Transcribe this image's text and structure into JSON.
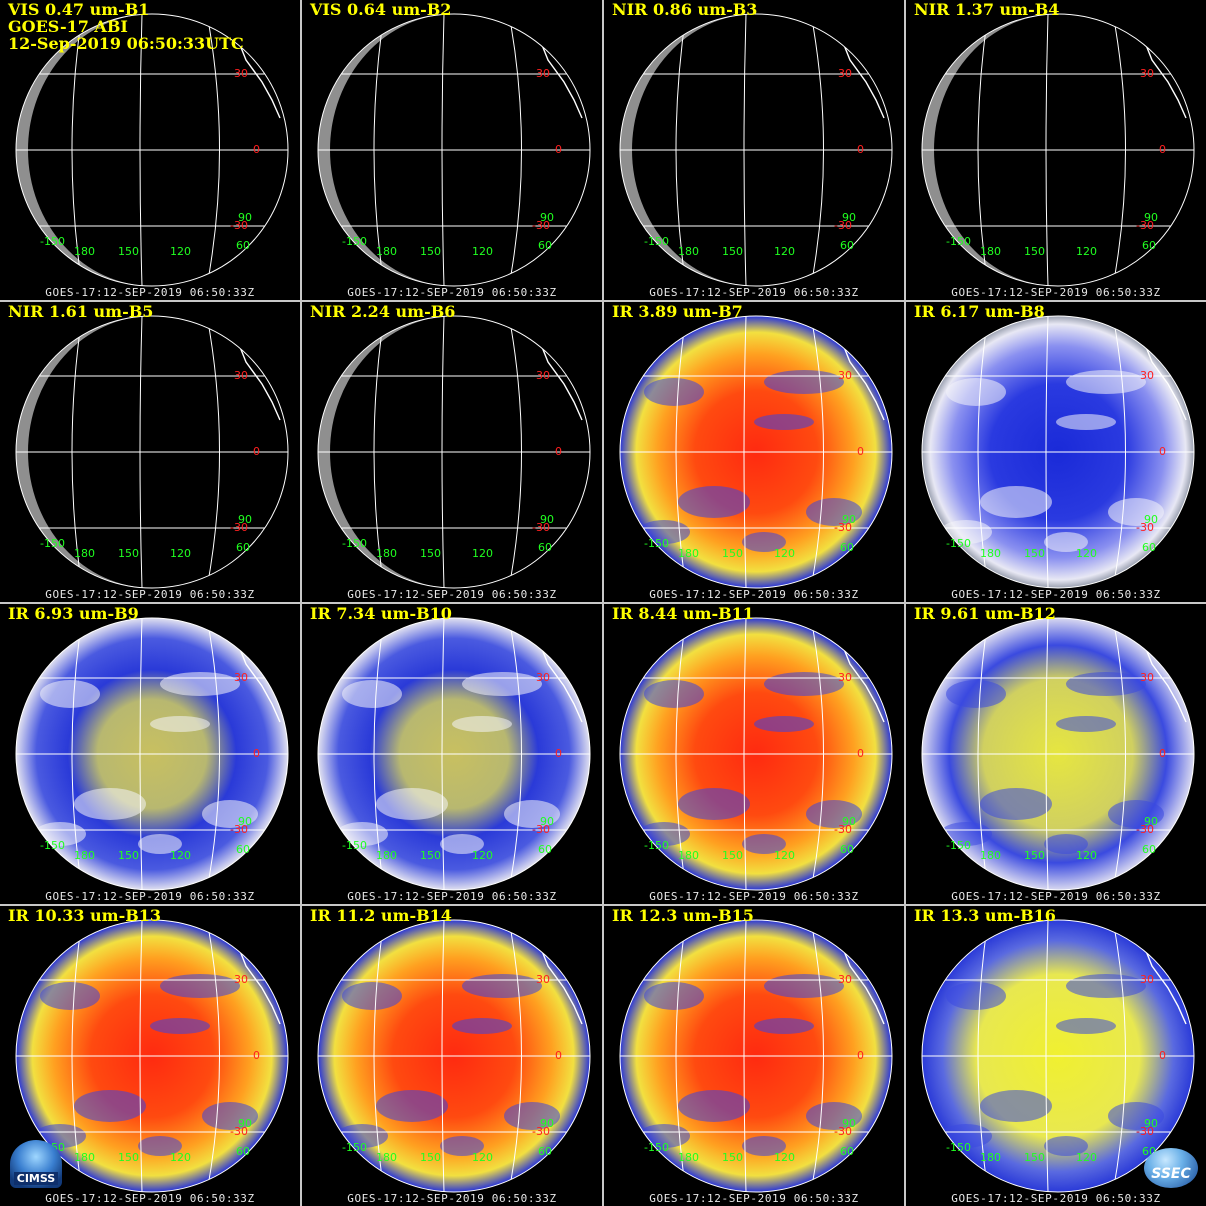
{
  "header": {
    "satellite": "GOES-17 ABI",
    "datetime": "12-Sep-2019 06:50:33UTC"
  },
  "footer_text": "GOES-17:12-SEP-2019 06:50:33Z",
  "lat_labels": [
    "30",
    "0",
    "-30"
  ],
  "lon_labels": [
    "-150",
    "180",
    "150",
    "120",
    "60",
    "90"
  ],
  "panels": [
    {
      "label": "VIS 0.47 um-B1",
      "style": "vis"
    },
    {
      "label": "VIS 0.64 um-B2",
      "style": "vis"
    },
    {
      "label": "NIR 0.86 um-B3",
      "style": "vis"
    },
    {
      "label": "NIR 1.37 um-B4",
      "style": "vis"
    },
    {
      "label": "NIR 1.61 um-B5",
      "style": "vis"
    },
    {
      "label": "NIR 2.24 um-B6",
      "style": "vis"
    },
    {
      "label": "IR 3.89 um-B7",
      "style": "ir-warm"
    },
    {
      "label": "IR 6.17 um-B8",
      "style": "wv-blue"
    },
    {
      "label": "IR 6.93 um-B9",
      "style": "wv"
    },
    {
      "label": "IR 7.34 um-B10",
      "style": "wv"
    },
    {
      "label": "IR 8.44 um-B11",
      "style": "ir-warm"
    },
    {
      "label": "IR 9.61 um-B12",
      "style": "ozone"
    },
    {
      "label": "IR 10.33 um-B13",
      "style": "ir-warm"
    },
    {
      "label": "IR 11.2 um-B14",
      "style": "ir-warm"
    },
    {
      "label": "IR 12.3 um-B15",
      "style": "ir-warm"
    },
    {
      "label": "IR 13.3 um-B16",
      "style": "co2"
    }
  ],
  "logos": {
    "left": "CIMSS",
    "right": "SSEC"
  },
  "colors": {
    "title_text": "#ffff00",
    "lat_label": "#ff2020",
    "lon_label": "#20ff20",
    "grid_line": "#ffffff",
    "panel_border": "#c8c8c8"
  }
}
